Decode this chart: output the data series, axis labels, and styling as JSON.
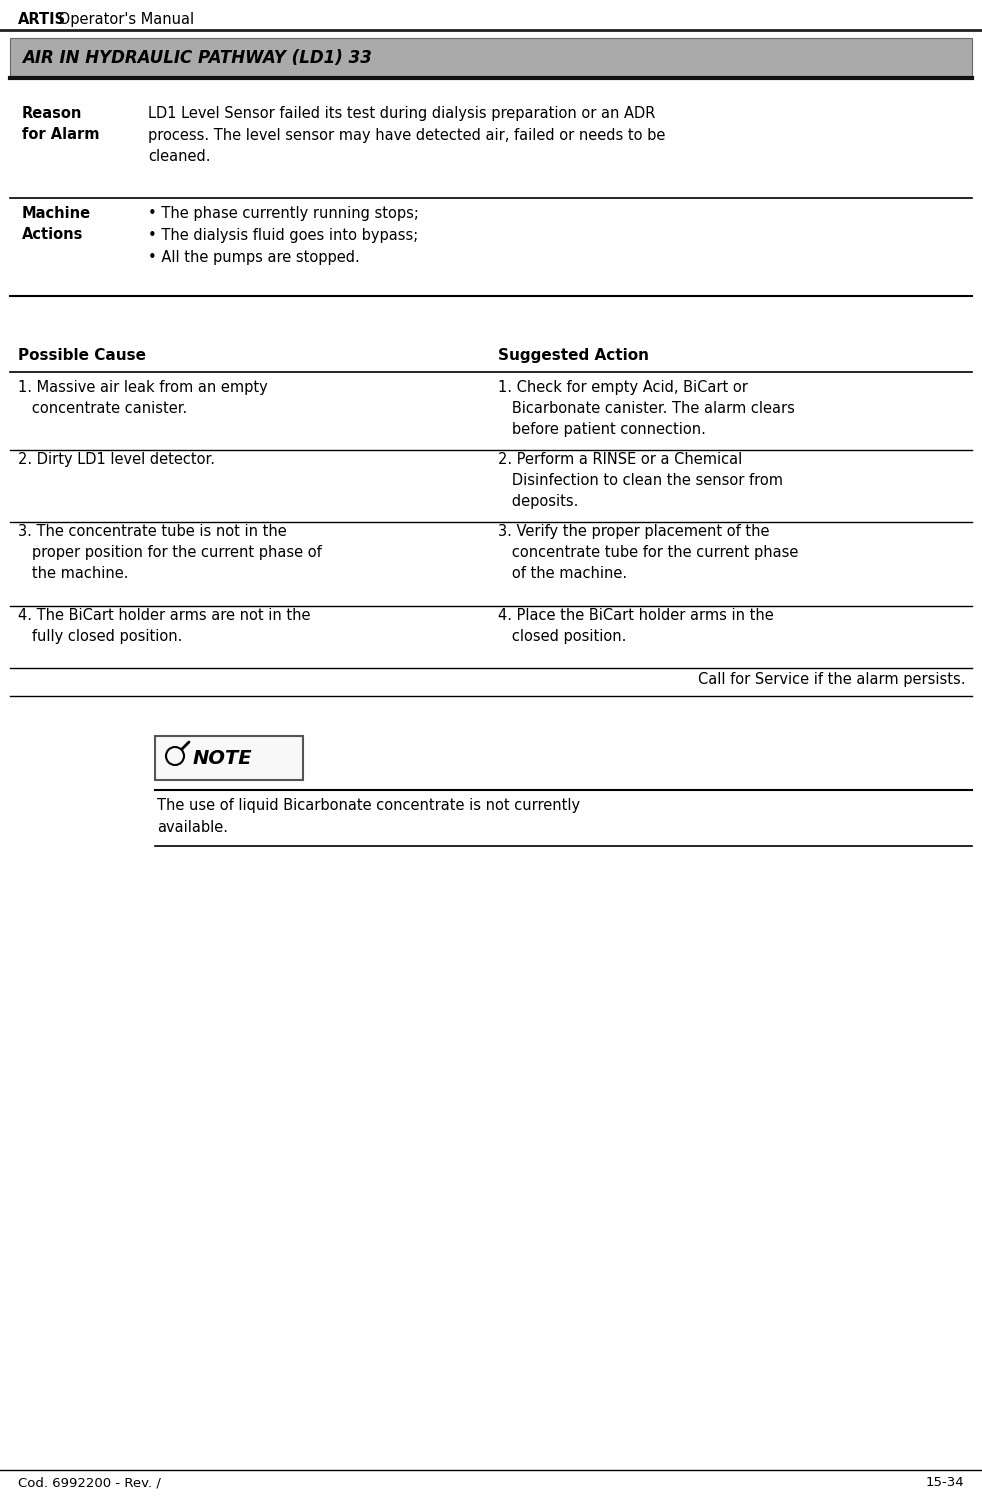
{
  "page_title_bold": "ARTIS",
  "page_title_rest": " Operator's Manual",
  "footer_left": "Cod. 6992200 - Rev. /",
  "footer_right": "15-34",
  "alarm_title": "AIR IN HYDRAULIC PATHWAY (LD1) 33",
  "alarm_bg_color": "#aaaaaa",
  "reason_label": "Reason\nfor Alarm",
  "reason_text": "LD1 Level Sensor failed its test during dialysis preparation or an ADR\nprocess. The level sensor may have detected air, failed or needs to be\ncleaned.",
  "machine_label": "Machine\nActions",
  "machine_text": "• The phase currently running stops;\n• The dialysis fluid goes into bypass;\n• All the pumps are stopped.",
  "col1_header": "Possible Cause",
  "col2_header": "Suggested Action",
  "rows": [
    {
      "cause": "1. Massive air leak from an empty\n   concentrate canister.",
      "action": "1. Check for empty Acid, BiCart or\n   Bicarbonate canister. The alarm clears\n   before patient connection."
    },
    {
      "cause": "2. Dirty LD1 level detector.",
      "action": "2. Perform a RINSE or a Chemical\n   Disinfection to clean the sensor from\n   deposits."
    },
    {
      "cause": "3. The concentrate tube is not in the\n   proper position for the current phase of\n   the machine.",
      "action": "3. Verify the proper placement of the\n   concentrate tube for the current phase\n   of the machine."
    },
    {
      "cause": "4. The BiCart holder arms are not in the\n   fully closed position.",
      "action": "4. Place the BiCart holder arms in the\n   closed position."
    }
  ],
  "service_text": "Call for Service if the alarm persists.",
  "note_label": "NOTE",
  "note_text": "The use of liquid Bicarbonate concentrate is not currently\navailable.",
  "bg_color": "#ffffff",
  "text_color": "#000000",
  "line_color": "#000000"
}
